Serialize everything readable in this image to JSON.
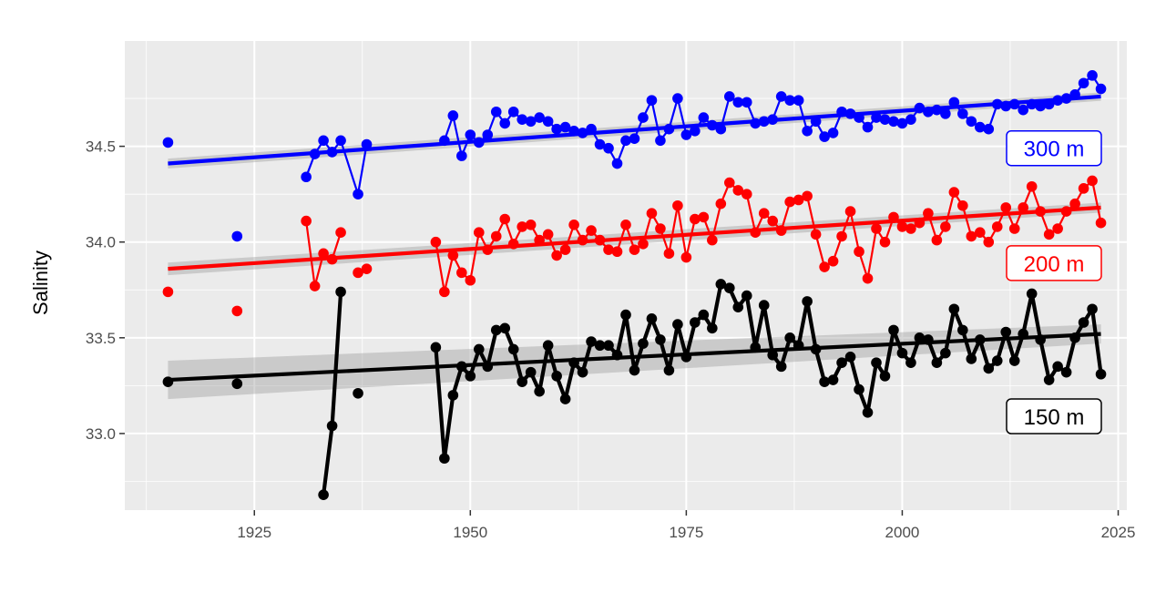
{
  "chart_data": {
    "type": "line",
    "title": "",
    "xlabel": "",
    "ylabel": "Salinity",
    "xlim": [
      1910,
      2026
    ],
    "ylim": [
      32.6,
      35.05
    ],
    "x_ticks": [
      1925,
      1950,
      1975,
      2000,
      2025
    ],
    "y_ticks": [
      33.0,
      33.5,
      34.0,
      34.5
    ],
    "x_tick_labels": [
      "1925",
      "1950",
      "1975",
      "2000",
      "2025"
    ],
    "y_tick_labels": [
      "33.0",
      "33.5",
      "34.0",
      "34.5"
    ],
    "grid": true,
    "legend": "none",
    "series": [
      {
        "name": "300 m",
        "color": "#0000ff",
        "label_color": "#0000ff",
        "points": [
          [
            1915,
            34.52
          ],
          [
            1923,
            34.03
          ],
          [
            1931,
            34.34
          ],
          [
            1932,
            34.46
          ],
          [
            1933,
            34.53
          ],
          [
            1934,
            34.47
          ],
          [
            1935,
            34.53
          ],
          [
            1937,
            34.25
          ],
          [
            1938,
            34.51
          ],
          [
            1947,
            34.53
          ],
          [
            1948,
            34.66
          ],
          [
            1949,
            34.45
          ],
          [
            1950,
            34.56
          ],
          [
            1951,
            34.52
          ],
          [
            1952,
            34.56
          ],
          [
            1953,
            34.68
          ],
          [
            1954,
            34.62
          ],
          [
            1955,
            34.68
          ],
          [
            1956,
            34.64
          ],
          [
            1957,
            34.63
          ],
          [
            1958,
            34.65
          ],
          [
            1959,
            34.63
          ],
          [
            1960,
            34.59
          ],
          [
            1961,
            34.6
          ],
          [
            1962,
            34.58
          ],
          [
            1963,
            34.57
          ],
          [
            1964,
            34.59
          ],
          [
            1965,
            34.51
          ],
          [
            1966,
            34.49
          ],
          [
            1967,
            34.41
          ],
          [
            1968,
            34.53
          ],
          [
            1969,
            34.54
          ],
          [
            1970,
            34.65
          ],
          [
            1971,
            34.74
          ],
          [
            1972,
            34.53
          ],
          [
            1973,
            34.59
          ],
          [
            1974,
            34.75
          ],
          [
            1975,
            34.56
          ],
          [
            1976,
            34.58
          ],
          [
            1977,
            34.65
          ],
          [
            1978,
            34.61
          ],
          [
            1979,
            34.59
          ],
          [
            1980,
            34.76
          ],
          [
            1981,
            34.73
          ],
          [
            1982,
            34.73
          ],
          [
            1983,
            34.62
          ],
          [
            1984,
            34.63
          ],
          [
            1985,
            34.64
          ],
          [
            1986,
            34.76
          ],
          [
            1987,
            34.74
          ],
          [
            1988,
            34.74
          ],
          [
            1989,
            34.58
          ],
          [
            1990,
            34.63
          ],
          [
            1991,
            34.55
          ],
          [
            1992,
            34.57
          ],
          [
            1993,
            34.68
          ],
          [
            1994,
            34.67
          ],
          [
            1995,
            34.65
          ],
          [
            1996,
            34.6
          ],
          [
            1997,
            34.65
          ],
          [
            1998,
            34.64
          ],
          [
            1999,
            34.63
          ],
          [
            2000,
            34.62
          ],
          [
            2001,
            34.64
          ],
          [
            2002,
            34.7
          ],
          [
            2003,
            34.68
          ],
          [
            2004,
            34.69
          ],
          [
            2005,
            34.67
          ],
          [
            2006,
            34.73
          ],
          [
            2007,
            34.67
          ],
          [
            2008,
            34.63
          ],
          [
            2009,
            34.6
          ],
          [
            2010,
            34.59
          ],
          [
            2011,
            34.72
          ],
          [
            2012,
            34.71
          ],
          [
            2013,
            34.72
          ],
          [
            2014,
            34.69
          ],
          [
            2015,
            34.72
          ],
          [
            2016,
            34.71
          ],
          [
            2017,
            34.72
          ],
          [
            2018,
            34.74
          ],
          [
            2019,
            34.75
          ],
          [
            2020,
            34.77
          ],
          [
            2021,
            34.83
          ],
          [
            2022,
            34.87
          ],
          [
            2023,
            34.8
          ]
        ],
        "segments": [
          [
            1931,
            1938
          ],
          [
            1947,
            2023
          ]
        ],
        "trend": [
          [
            1915,
            34.41
          ],
          [
            2023,
            34.76
          ]
        ],
        "trend_band_halfwidth": [
          0.026,
          0.022
        ],
        "label": "300 m",
        "label_y": 34.49
      },
      {
        "name": "200 m",
        "color": "#ff0000",
        "label_color": "#ff0000",
        "points": [
          [
            1915,
            33.74
          ],
          [
            1923,
            33.64
          ],
          [
            1931,
            34.11
          ],
          [
            1932,
            33.77
          ],
          [
            1933,
            33.94
          ],
          [
            1934,
            33.91
          ],
          [
            1935,
            34.05
          ],
          [
            1937,
            33.84
          ],
          [
            1938,
            33.86
          ],
          [
            1946,
            34.0
          ],
          [
            1947,
            33.74
          ],
          [
            1948,
            33.93
          ],
          [
            1949,
            33.84
          ],
          [
            1950,
            33.8
          ],
          [
            1951,
            34.05
          ],
          [
            1952,
            33.96
          ],
          [
            1953,
            34.03
          ],
          [
            1954,
            34.12
          ],
          [
            1955,
            33.99
          ],
          [
            1956,
            34.08
          ],
          [
            1957,
            34.09
          ],
          [
            1958,
            34.01
          ],
          [
            1959,
            34.04
          ],
          [
            1960,
            33.93
          ],
          [
            1961,
            33.96
          ],
          [
            1962,
            34.09
          ],
          [
            1963,
            34.01
          ],
          [
            1964,
            34.06
          ],
          [
            1965,
            34.01
          ],
          [
            1966,
            33.96
          ],
          [
            1967,
            33.95
          ],
          [
            1968,
            34.09
          ],
          [
            1969,
            33.96
          ],
          [
            1970,
            33.99
          ],
          [
            1971,
            34.15
          ],
          [
            1972,
            34.07
          ],
          [
            1973,
            33.94
          ],
          [
            1974,
            34.19
          ],
          [
            1975,
            33.92
          ],
          [
            1976,
            34.12
          ],
          [
            1977,
            34.13
          ],
          [
            1978,
            34.01
          ],
          [
            1979,
            34.2
          ],
          [
            1980,
            34.31
          ],
          [
            1981,
            34.27
          ],
          [
            1982,
            34.25
          ],
          [
            1983,
            34.05
          ],
          [
            1984,
            34.15
          ],
          [
            1985,
            34.11
          ],
          [
            1986,
            34.06
          ],
          [
            1987,
            34.21
          ],
          [
            1988,
            34.22
          ],
          [
            1989,
            34.24
          ],
          [
            1990,
            34.04
          ],
          [
            1991,
            33.87
          ],
          [
            1992,
            33.9
          ],
          [
            1993,
            34.03
          ],
          [
            1994,
            34.16
          ],
          [
            1995,
            33.95
          ],
          [
            1996,
            33.81
          ],
          [
            1997,
            34.07
          ],
          [
            1998,
            34.0
          ],
          [
            1999,
            34.13
          ],
          [
            2000,
            34.08
          ],
          [
            2001,
            34.07
          ],
          [
            2002,
            34.1
          ],
          [
            2003,
            34.15
          ],
          [
            2004,
            34.01
          ],
          [
            2005,
            34.08
          ],
          [
            2006,
            34.26
          ],
          [
            2007,
            34.19
          ],
          [
            2008,
            34.03
          ],
          [
            2009,
            34.05
          ],
          [
            2010,
            34.0
          ],
          [
            2011,
            34.08
          ],
          [
            2012,
            34.18
          ],
          [
            2013,
            34.07
          ],
          [
            2014,
            34.18
          ],
          [
            2015,
            34.29
          ],
          [
            2016,
            34.16
          ],
          [
            2017,
            34.04
          ],
          [
            2018,
            34.07
          ],
          [
            2019,
            34.16
          ],
          [
            2020,
            34.2
          ],
          [
            2021,
            34.28
          ],
          [
            2022,
            34.32
          ],
          [
            2023,
            34.1
          ]
        ],
        "segments": [
          [
            1931,
            1935
          ],
          [
            1937,
            1938
          ],
          [
            1946,
            2023
          ]
        ],
        "trend": [
          [
            1915,
            33.86
          ],
          [
            2023,
            34.18
          ]
        ],
        "trend_band_halfwidth": [
          0.033,
          0.026
        ],
        "label": "200 m",
        "label_y": 33.89
      },
      {
        "name": "150 m",
        "color": "#000000",
        "label_color": "#000000",
        "points": [
          [
            1915,
            33.27
          ],
          [
            1923,
            33.26
          ],
          [
            1933,
            32.68
          ],
          [
            1934,
            33.04
          ],
          [
            1935,
            33.74
          ],
          [
            1937,
            33.21
          ],
          [
            1946,
            33.45
          ],
          [
            1947,
            32.87
          ],
          [
            1948,
            33.2
          ],
          [
            1949,
            33.35
          ],
          [
            1950,
            33.3
          ],
          [
            1951,
            33.44
          ],
          [
            1952,
            33.35
          ],
          [
            1953,
            33.54
          ],
          [
            1954,
            33.55
          ],
          [
            1955,
            33.44
          ],
          [
            1956,
            33.27
          ],
          [
            1957,
            33.32
          ],
          [
            1958,
            33.22
          ],
          [
            1959,
            33.46
          ],
          [
            1960,
            33.3
          ],
          [
            1961,
            33.18
          ],
          [
            1962,
            33.37
          ],
          [
            1963,
            33.32
          ],
          [
            1964,
            33.48
          ],
          [
            1965,
            33.46
          ],
          [
            1966,
            33.46
          ],
          [
            1967,
            33.41
          ],
          [
            1968,
            33.62
          ],
          [
            1969,
            33.33
          ],
          [
            1970,
            33.47
          ],
          [
            1971,
            33.6
          ],
          [
            1972,
            33.49
          ],
          [
            1973,
            33.33
          ],
          [
            1974,
            33.57
          ],
          [
            1975,
            33.4
          ],
          [
            1976,
            33.58
          ],
          [
            1977,
            33.62
          ],
          [
            1978,
            33.55
          ],
          [
            1979,
            33.78
          ],
          [
            1980,
            33.76
          ],
          [
            1981,
            33.66
          ],
          [
            1982,
            33.72
          ],
          [
            1983,
            33.45
          ],
          [
            1984,
            33.67
          ],
          [
            1985,
            33.41
          ],
          [
            1986,
            33.35
          ],
          [
            1987,
            33.5
          ],
          [
            1988,
            33.46
          ],
          [
            1989,
            33.69
          ],
          [
            1990,
            33.44
          ],
          [
            1991,
            33.27
          ],
          [
            1992,
            33.28
          ],
          [
            1993,
            33.37
          ],
          [
            1994,
            33.4
          ],
          [
            1995,
            33.23
          ],
          [
            1996,
            33.11
          ],
          [
            1997,
            33.37
          ],
          [
            1998,
            33.3
          ],
          [
            1999,
            33.54
          ],
          [
            2000,
            33.42
          ],
          [
            2001,
            33.37
          ],
          [
            2002,
            33.5
          ],
          [
            2003,
            33.49
          ],
          [
            2004,
            33.37
          ],
          [
            2005,
            33.42
          ],
          [
            2006,
            33.65
          ],
          [
            2007,
            33.54
          ],
          [
            2008,
            33.39
          ],
          [
            2009,
            33.49
          ],
          [
            2010,
            33.34
          ],
          [
            2011,
            33.38
          ],
          [
            2012,
            33.53
          ],
          [
            2013,
            33.38
          ],
          [
            2014,
            33.52
          ],
          [
            2015,
            33.73
          ],
          [
            2016,
            33.49
          ],
          [
            2017,
            33.28
          ],
          [
            2018,
            33.35
          ],
          [
            2019,
            33.32
          ],
          [
            2020,
            33.5
          ],
          [
            2021,
            33.58
          ],
          [
            2022,
            33.65
          ],
          [
            2023,
            33.31
          ]
        ],
        "segments": [
          [
            1933,
            1935
          ],
          [
            1946,
            2023
          ]
        ],
        "trend": [
          [
            1915,
            33.28
          ],
          [
            2023,
            33.52
          ]
        ],
        "trend_band_halfwidth": [
          0.1,
          0.05
        ],
        "label": "150 m",
        "label_y": 33.09
      }
    ]
  }
}
